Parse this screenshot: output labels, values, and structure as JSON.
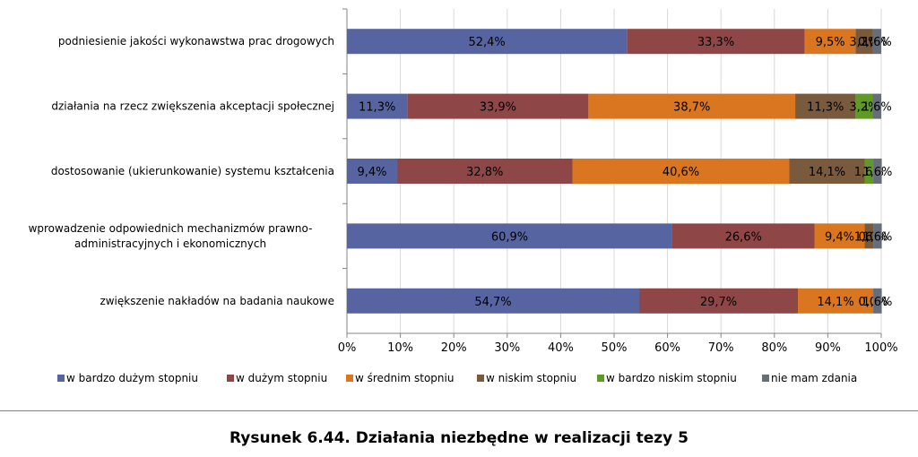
{
  "colors": {
    "w bardzo dużym stopniu": "#5665a2",
    "w dużym stopniu": "#8f4647",
    "w średnim stopniu": "#d9761f",
    "w niskim stopniu": "#7a5a3c",
    "w bardzo niskim stopniu": "#5f9a25",
    "nie mam zdania": "#666e78"
  },
  "chart_data": {
    "type": "bar",
    "orientation": "horizontal",
    "stacked": true,
    "percent": true,
    "xlim": [
      0,
      100
    ],
    "x_ticks": [
      "0%",
      "10%",
      "20%",
      "30%",
      "40%",
      "50%",
      "60%",
      "70%",
      "80%",
      "90%",
      "100%"
    ],
    "grid": true,
    "legend_position": "bottom",
    "categories": [
      [
        "podniesienie jakości wykonawstwa prac drogowych"
      ],
      [
        "działania na rzecz zwiększenia akceptacji społecznej"
      ],
      [
        "dostosowanie (ukierunkowanie) systemu kształcenia"
      ],
      [
        "wprowadzenie odpowiednich mechanizmów prawno-",
        "administracyjnych i ekonomicznych"
      ],
      [
        "zwiększenie nakładów na badania naukowe"
      ]
    ],
    "series": [
      {
        "name": "w bardzo dużym stopniu",
        "values": [
          52.4,
          11.3,
          9.4,
          60.9,
          54.7
        ],
        "labels": [
          "52,4%",
          "11,3%",
          "9,4%",
          "60,9%",
          "54,7%"
        ]
      },
      {
        "name": "w dużym stopniu",
        "values": [
          33.3,
          33.9,
          32.8,
          26.6,
          29.7
        ],
        "labels": [
          "33,3%",
          "33,9%",
          "32,8%",
          "26,6%",
          "29,7%"
        ]
      },
      {
        "name": "w średnim stopniu",
        "values": [
          9.5,
          38.7,
          40.6,
          9.4,
          14.1
        ],
        "labels": [
          "9,5%",
          "38,7%",
          "40,6%",
          "9,4%",
          "14,1%"
        ]
      },
      {
        "name": "w niskim stopniu",
        "values": [
          3.2,
          11.3,
          14.1,
          1.6,
          0.0
        ],
        "labels": [
          "3,2%",
          "11,3%",
          "14,1%",
          "1,6%",
          "0,0%"
        ]
      },
      {
        "name": "w bardzo niskim stopniu",
        "values": [
          0.0,
          3.2,
          1.6,
          0.0,
          0.0
        ],
        "labels": [
          "0,0%",
          "3,2%",
          "1,6%",
          "0,0%",
          "0,0%"
        ]
      },
      {
        "name": "nie mam zdania",
        "values": [
          1.6,
          1.6,
          1.6,
          1.6,
          1.6
        ],
        "labels": [
          "1,6%",
          "1,6%",
          "1,6%",
          "1,6%",
          "1,6%"
        ]
      }
    ]
  },
  "caption": "Rysunek 6.44. Działania niezbędne w realizacji tezy 5"
}
